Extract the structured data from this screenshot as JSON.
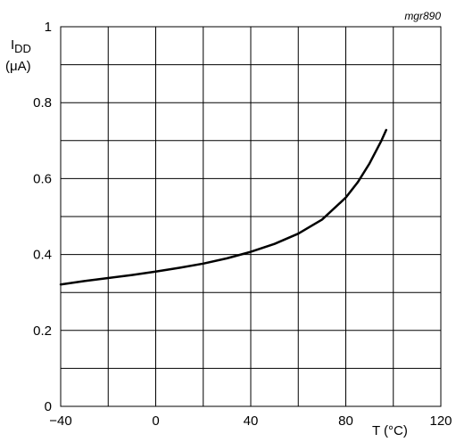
{
  "chart_data": {
    "type": "line",
    "figure_ref": "mgr890",
    "ylabel_main": "I",
    "ylabel_sub": "DD",
    "ylabel_unit": "(μA)",
    "xlabel": "T (°C)",
    "xlim": [
      -40,
      120
    ],
    "ylim": [
      0,
      1
    ],
    "xticks": [
      -40,
      0,
      40,
      80,
      120
    ],
    "xtick_labels": [
      "−40",
      "0",
      "40",
      "80",
      "120"
    ],
    "yticks": [
      0,
      0.2,
      0.4,
      0.6,
      0.8,
      1
    ],
    "ytick_labels": [
      "0",
      "0.2",
      "0.4",
      "0.6",
      "0.8",
      "1"
    ],
    "grid": true,
    "grid_x_step": 20,
    "grid_y_step": 0.1,
    "series": [
      {
        "x": [
          -40,
          -30,
          -20,
          -10,
          0,
          10,
          20,
          30,
          40,
          50,
          60,
          70,
          80,
          85,
          90,
          95,
          97
        ],
        "y": [
          0.321,
          0.33,
          0.338,
          0.346,
          0.355,
          0.365,
          0.376,
          0.39,
          0.407,
          0.428,
          0.455,
          0.492,
          0.55,
          0.59,
          0.64,
          0.7,
          0.728
        ]
      }
    ]
  }
}
